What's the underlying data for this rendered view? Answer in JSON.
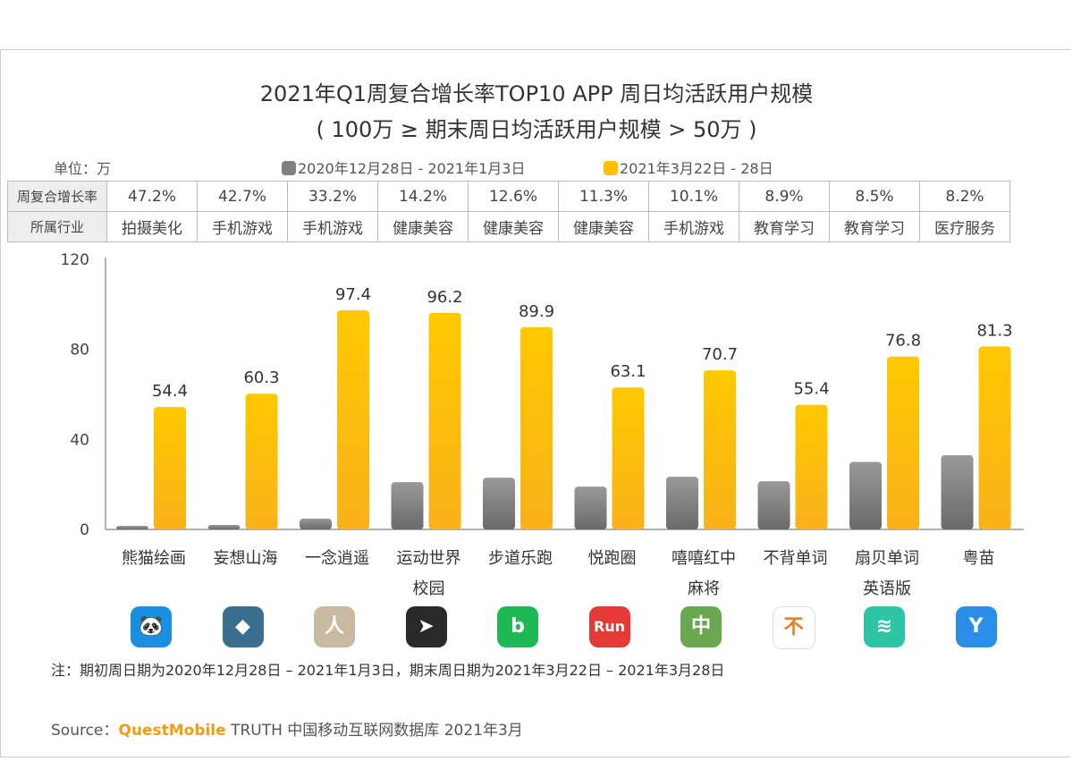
{
  "title": "2021年Q1周复合增长率TOP10 APP 周日均活跃用户规模",
  "subtitle": "( 100万 ≥ 期末周日均活跃用户规模 > 50万 )",
  "unit": "单位：万",
  "legend": [
    "2020年12月28日 - 2021年1月3日",
    "2021年3月22日 - 28日"
  ],
  "table": {
    "row1_label": "周复合增长率",
    "row2_label": "所属行业",
    "growth": [
      "47.2%",
      "42.7%",
      "33.2%",
      "14.2%",
      "12.6%",
      "11.3%",
      "10.1%",
      "8.9%",
      "8.5%",
      "8.2%"
    ],
    "industry": [
      "拍摄美化",
      "手机游戏",
      "手机游戏",
      "健康美容",
      "健康美容",
      "健康美容",
      "手机游戏",
      "教育学习",
      "教育学习",
      "医疗服务"
    ]
  },
  "chart_data": {
    "type": "bar",
    "title": "2021年Q1周复合增长率TOP10 APP 周日均活跃用户规模",
    "ylabel": "万",
    "ylim": [
      0,
      120
    ],
    "yticks": [
      "0",
      "40",
      "80",
      "120"
    ],
    "categories": [
      "熊猫绘画",
      "妄想山海",
      "一念逍遥",
      "运动世界校园",
      "步道乐跑",
      "悦跑圈",
      "嘻嘻红中麻将",
      "不背单词",
      "扇贝单词英语版",
      "粤苗"
    ],
    "category_lines": [
      [
        "熊猫绘画"
      ],
      [
        "妄想山海"
      ],
      [
        "一念逍遥"
      ],
      [
        "运动世界",
        "校园"
      ],
      [
        "步道乐跑"
      ],
      [
        "悦跑圈"
      ],
      [
        "嘻嘻红中",
        "麻将"
      ],
      [
        "不背单词"
      ],
      [
        "扇贝单词",
        "英语版"
      ],
      [
        "粤苗"
      ]
    ],
    "series": [
      {
        "name": "2020年12月28日 - 2021年1月3日",
        "color": "#808080",
        "values": [
          1.6,
          2,
          4.8,
          21,
          23,
          19,
          23.4,
          21.4,
          30,
          33
        ]
      },
      {
        "name": "2021年3月22日 - 28日",
        "color": "#FFC000",
        "values": [
          54.4,
          60.3,
          97.4,
          96.2,
          89.9,
          63.1,
          70.7,
          55.4,
          76.8,
          81.3
        ],
        "labels": [
          "54.4",
          "60.3",
          "97.4",
          "96.2",
          "89.9",
          "63.1",
          "70.7",
          "55.4",
          "76.8",
          "81.3"
        ]
      }
    ]
  },
  "icons": [
    {
      "color": "#1a8fe0",
      "glyph": "🐼"
    },
    {
      "color": "#3a6f8f",
      "glyph": "◆"
    },
    {
      "color": "#c9b9a0",
      "glyph": "人"
    },
    {
      "color": "#2a2a2a",
      "glyph": "➤"
    },
    {
      "color": "#1db954",
      "glyph": "b"
    },
    {
      "color": "#e53935",
      "glyph": "Run"
    },
    {
      "color": "#6aa84f",
      "glyph": "中"
    },
    {
      "color": "#ffffff",
      "glyph": "不"
    },
    {
      "color": "#2ec4a6",
      "glyph": "≋"
    },
    {
      "color": "#2a8ee8",
      "glyph": "Y"
    }
  ],
  "note": "注：期初周日期为2020年12月28日 – 2021年1月3日，期末周日期为2021年3月22日 – 2021年3月28日",
  "source": {
    "prefix": "Source：",
    "brand": "QuestMobile",
    "suffix": " TRUTH 中国移动互联网数据库 2021年3月"
  }
}
